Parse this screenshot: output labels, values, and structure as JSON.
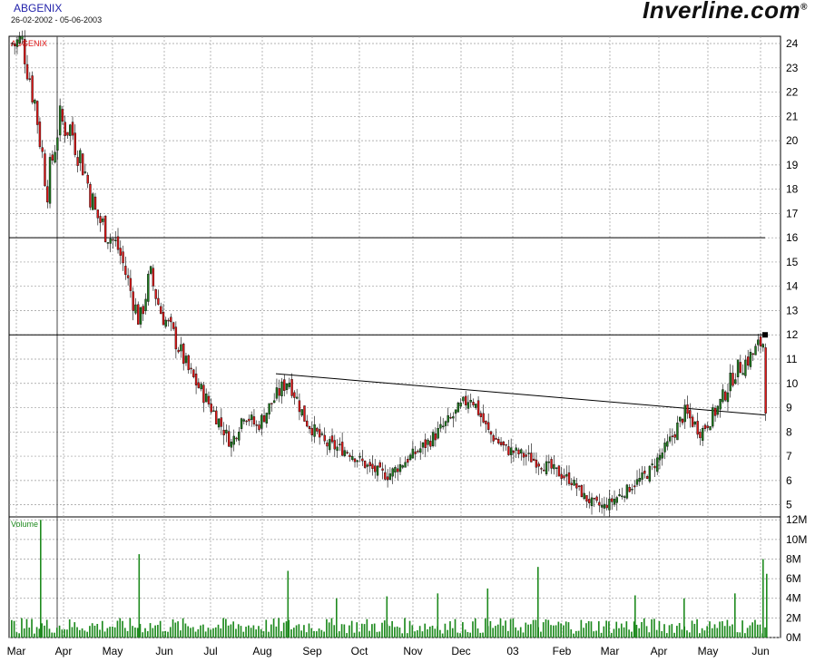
{
  "header": {
    "symbol": "ABGENIX",
    "date_range": "26-02-2002 - 05-06-2003",
    "brand_prefix": "Inver",
    "brand_suffix": "line.com",
    "brand_mark": "®"
  },
  "chart_data": [
    {
      "type": "candlestick",
      "panel_label": "ABGENIX",
      "x_tick_labels": [
        "Mar",
        "Apr",
        "May",
        "Jun",
        "Jul",
        "Aug",
        "Sep",
        "Oct",
        "Nov",
        "Dec",
        "03",
        "Feb",
        "Mar",
        "Apr",
        "May",
        "Jun"
      ],
      "y_tick_labels": [
        "24",
        "23",
        "22",
        "21",
        "20",
        "19",
        "18",
        "17",
        "16",
        "15",
        "14",
        "13",
        "12",
        "11",
        "10",
        "9",
        "8",
        "7",
        "6",
        "5"
      ],
      "ylim": [
        4.5,
        24.3
      ],
      "grid": true,
      "up_color": "#1e7a1e",
      "down_color": "#e01818",
      "close_path": [
        [
          "Mar",
          24.0
        ],
        [
          "Mar",
          21.5
        ],
        [
          "Mar",
          18.0
        ],
        [
          "Mar",
          20.8
        ],
        [
          "Apr",
          20.5
        ],
        [
          "Apr",
          19.0
        ],
        [
          "Apr",
          17.0
        ],
        [
          "Apr",
          16.2
        ],
        [
          "May",
          15.5
        ],
        [
          "May",
          14.0
        ],
        [
          "May",
          12.5
        ],
        [
          "May",
          14.5
        ],
        [
          "May",
          13.0
        ],
        [
          "Jun",
          12.0
        ],
        [
          "Jun",
          10.5
        ],
        [
          "Jun",
          9.5
        ],
        [
          "Jul",
          8.5
        ],
        [
          "Jul",
          7.5
        ],
        [
          "Jul",
          8.8
        ],
        [
          "Jul",
          8.2
        ],
        [
          "Aug",
          9.2
        ],
        [
          "Aug",
          10.2
        ],
        [
          "Aug",
          8.5
        ],
        [
          "Sep",
          7.5
        ],
        [
          "Sep",
          7.2
        ],
        [
          "Oct",
          6.5
        ],
        [
          "Oct",
          6.2
        ],
        [
          "Oct",
          6.8
        ],
        [
          "Nov",
          7.5
        ],
        [
          "Nov",
          8.5
        ],
        [
          "Dec",
          9.5
        ],
        [
          "Dec",
          8.0
        ],
        [
          "Dec",
          7.3
        ],
        [
          "03",
          7.0
        ],
        [
          "03",
          6.5
        ],
        [
          "Feb",
          6.0
        ],
        [
          "Feb",
          5.2
        ],
        [
          "Feb",
          4.9
        ],
        [
          "Mar",
          5.5
        ],
        [
          "Mar",
          6.3
        ],
        [
          "Apr",
          7.5
        ],
        [
          "Apr",
          8.8
        ],
        [
          "Apr",
          8.0
        ],
        [
          "May",
          9.0
        ],
        [
          "May",
          10.5
        ],
        [
          "May",
          11.2
        ],
        [
          "Jun",
          11.8
        ],
        [
          "Jun",
          9.0
        ],
        [
          "Jun",
          10.2
        ]
      ],
      "horizontal_lines": [
        16.0,
        12.0
      ],
      "trend_line": {
        "from": [
          "Aug",
          10.4
        ],
        "to": [
          "Jun",
          8.7
        ]
      }
    },
    {
      "type": "bar",
      "panel_label": "Volume",
      "y_tick_labels": [
        "12M",
        "10M",
        "8M",
        "6M",
        "4M",
        "2M",
        "0M"
      ],
      "ylim": [
        0,
        12.3
      ],
      "bar_color": "#1e8a1e",
      "spikes": [
        [
          "Mar",
          12.0
        ],
        [
          "May",
          8.5
        ],
        [
          "Aug",
          6.8
        ],
        [
          "Sep",
          4.0
        ],
        [
          "Oct",
          4.2
        ],
        [
          "Nov",
          4.5
        ],
        [
          "Dec",
          5.0
        ],
        [
          "03",
          7.2
        ],
        [
          "Mar",
          4.3
        ],
        [
          "Apr",
          4.0
        ],
        [
          "May",
          4.5
        ],
        [
          "Jun",
          8.0
        ],
        [
          "Jun",
          6.5
        ]
      ]
    }
  ]
}
